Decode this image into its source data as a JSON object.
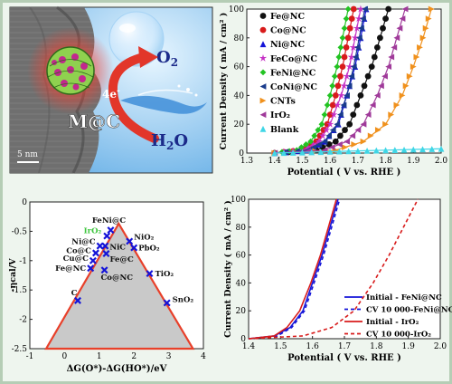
{
  "colors": {
    "background": "#eef5ee",
    "plot_bg": "#ffffff",
    "triangle_line": "#e8402a",
    "triangle_fill": "#c9c9c9",
    "marker_blue": "#1414d8",
    "label_green": "#3cc43c",
    "arrow_red": "#e2362a",
    "tem_gray": "#6d6d6d",
    "sphere_green": "#8fd14f",
    "sphere_magenta": "#c2288e"
  },
  "illustration": {
    "o2_label": "O",
    "o2_sub": "2",
    "h2o_label": "H",
    "h2o_sub": "2",
    "h2o_tail": "O",
    "electron_label": "4e",
    "electron_sup": "-",
    "mc_label": "M@C",
    "scale_label": "5 nm",
    "icons": [
      "bubble-icon",
      "curved-arrow-icon",
      "water-splash-icon",
      "nanoparticle-sphere-icon"
    ]
  },
  "chart_data": [
    {
      "type": "line",
      "xlabel": "Potential ( V vs. RHE )",
      "ylabel": "Current Density ( mA / cm² )",
      "xlim": [
        1.3,
        2.0
      ],
      "ylim": [
        0,
        100
      ],
      "xticks": [
        "1.3",
        "1.4",
        "1.5",
        "1.6",
        "1.7",
        "1.8",
        "1.9",
        "2.0"
      ],
      "yticks": [
        "0",
        "20",
        "40",
        "60",
        "80",
        "100"
      ],
      "grid": false,
      "legend_position": "top-left",
      "series": [
        {
          "name": "Fe@NC",
          "color": "#111111",
          "marker": "circle",
          "x": [
            1.4,
            1.55,
            1.62,
            1.67,
            1.71,
            1.75,
            1.78,
            1.81
          ],
          "y": [
            0,
            2,
            8,
            20,
            40,
            60,
            80,
            100
          ]
        },
        {
          "name": "Co@NC",
          "color": "#d81b1b",
          "marker": "circle",
          "x": [
            1.4,
            1.5,
            1.55,
            1.59,
            1.62,
            1.645,
            1.665,
            1.685
          ],
          "y": [
            0,
            2,
            8,
            20,
            40,
            60,
            80,
            100
          ]
        },
        {
          "name": "Ni@NC",
          "color": "#1414d8",
          "marker": "triangle",
          "x": [
            1.4,
            1.52,
            1.58,
            1.63,
            1.66,
            1.69,
            1.71,
            1.73
          ],
          "y": [
            0,
            2,
            8,
            20,
            40,
            60,
            80,
            100
          ]
        },
        {
          "name": "FeCo@NC",
          "color": "#c530c5",
          "marker": "star",
          "x": [
            1.4,
            1.5,
            1.56,
            1.6,
            1.64,
            1.67,
            1.69,
            1.71
          ],
          "y": [
            0,
            2,
            8,
            20,
            40,
            60,
            80,
            100
          ]
        },
        {
          "name": "FeNi@NC",
          "color": "#22c322",
          "marker": "diamond",
          "x": [
            1.4,
            1.48,
            1.53,
            1.57,
            1.6,
            1.625,
            1.645,
            1.665
          ],
          "y": [
            0,
            2,
            8,
            20,
            40,
            60,
            80,
            100
          ]
        },
        {
          "name": "CoNi@NC",
          "color": "#1a3c8c",
          "marker": "triangle-left",
          "x": [
            1.4,
            1.52,
            1.58,
            1.625,
            1.66,
            1.685,
            1.705,
            1.725
          ],
          "y": [
            0,
            2,
            8,
            20,
            40,
            60,
            80,
            100
          ]
        },
        {
          "name": "CNTs",
          "color": "#f0911d",
          "marker": "triangle-right",
          "x": [
            1.4,
            1.62,
            1.72,
            1.8,
            1.86,
            1.9,
            1.935,
            1.965
          ],
          "y": [
            0,
            2,
            8,
            20,
            40,
            60,
            80,
            100
          ]
        },
        {
          "name": "IrO₂",
          "color": "#a03a9a",
          "marker": "triangle-left",
          "x": [
            1.4,
            1.58,
            1.66,
            1.72,
            1.77,
            1.81,
            1.84,
            1.87
          ],
          "y": [
            0,
            2,
            8,
            20,
            40,
            60,
            80,
            100
          ]
        },
        {
          "name": "Blank",
          "color": "#3fd6e6",
          "marker": "triangle",
          "x": [
            1.4,
            1.5,
            1.6,
            1.7,
            1.8,
            1.9,
            2.0
          ],
          "y": [
            0,
            0.5,
            1,
            1.5,
            2,
            2.5,
            3
          ]
        }
      ]
    },
    {
      "type": "scatter",
      "xlabel": "ΔG(O*)-ΔG(HO*)/eV",
      "ylabel": "-ηcal/V",
      "xlim": [
        -1,
        4
      ],
      "ylim": [
        -2.5,
        0
      ],
      "xticks": [
        "-1",
        "0",
        "1",
        "2",
        "3",
        "4"
      ],
      "yticks": [
        "0",
        "-0.5",
        "-1",
        "-1.5",
        "-2",
        "-2.5"
      ],
      "volcano": {
        "apex": [
          1.56,
          -0.37
        ],
        "left_base": [
          -0.53,
          -2.5
        ],
        "right_base": [
          3.7,
          -2.5
        ]
      },
      "points": [
        {
          "label": "FeNi@C",
          "x": 1.33,
          "y": -0.48
        },
        {
          "label": "IrO₂",
          "x": 1.22,
          "y": -0.58
        },
        {
          "label": "Ni@C",
          "x": 1.02,
          "y": -0.75
        },
        {
          "label": "NiC",
          "x": 1.17,
          "y": -0.75
        },
        {
          "label": "NiO₂",
          "x": 1.87,
          "y": -0.67
        },
        {
          "label": "PbO₂",
          "x": 2.0,
          "y": -0.78
        },
        {
          "label": "Co@C",
          "x": 0.9,
          "y": -0.87
        },
        {
          "label": "Fe@C",
          "x": 1.2,
          "y": -0.88
        },
        {
          "label": "Cu@C",
          "x": 0.82,
          "y": -1.0
        },
        {
          "label": "Fe@NC",
          "x": 0.75,
          "y": -1.13
        },
        {
          "label": "Co@NC",
          "x": 1.15,
          "y": -1.16
        },
        {
          "label": "TiO₂",
          "x": 2.45,
          "y": -1.22
        },
        {
          "label": "C",
          "x": 0.38,
          "y": -1.68
        },
        {
          "label": "SnO₂",
          "x": 2.95,
          "y": -1.72
        }
      ]
    },
    {
      "type": "line",
      "xlabel": "Potential ( V vs. RHE )",
      "ylabel": "Current Density ( mA / cm² )",
      "xlim": [
        1.4,
        2.0
      ],
      "ylim": [
        0,
        100
      ],
      "xticks": [
        "1.4",
        "1.5",
        "1.6",
        "1.7",
        "1.8",
        "1.9",
        "2.0"
      ],
      "yticks": [
        "0",
        "20",
        "40",
        "60",
        "80",
        "100"
      ],
      "legend_position": "bottom-right",
      "series": [
        {
          "name": "Initial - FeNi@NC",
          "color": "#1414d8",
          "style": "solid",
          "x": [
            1.4,
            1.48,
            1.53,
            1.57,
            1.6,
            1.63,
            1.655,
            1.68
          ],
          "y": [
            0,
            2,
            8,
            20,
            40,
            60,
            80,
            100
          ]
        },
        {
          "name": "CV 10 000-FeNi@NC",
          "color": "#1414d8",
          "style": "dashed",
          "x": [
            1.4,
            1.49,
            1.535,
            1.575,
            1.605,
            1.635,
            1.66,
            1.685
          ],
          "y": [
            0,
            2,
            8,
            20,
            40,
            60,
            80,
            100
          ]
        },
        {
          "name": "Initial - IrO₂",
          "color": "#d81b1b",
          "style": "solid",
          "x": [
            1.4,
            1.48,
            1.52,
            1.56,
            1.595,
            1.625,
            1.65,
            1.675
          ],
          "y": [
            0,
            2,
            8,
            20,
            40,
            60,
            80,
            100
          ]
        },
        {
          "name": "CV 10 000-IrO₂",
          "color": "#d81b1b",
          "style": "dashed",
          "x": [
            1.4,
            1.57,
            1.66,
            1.73,
            1.79,
            1.84,
            1.885,
            1.93
          ],
          "y": [
            0,
            2,
            8,
            20,
            40,
            60,
            80,
            100
          ]
        }
      ]
    }
  ]
}
